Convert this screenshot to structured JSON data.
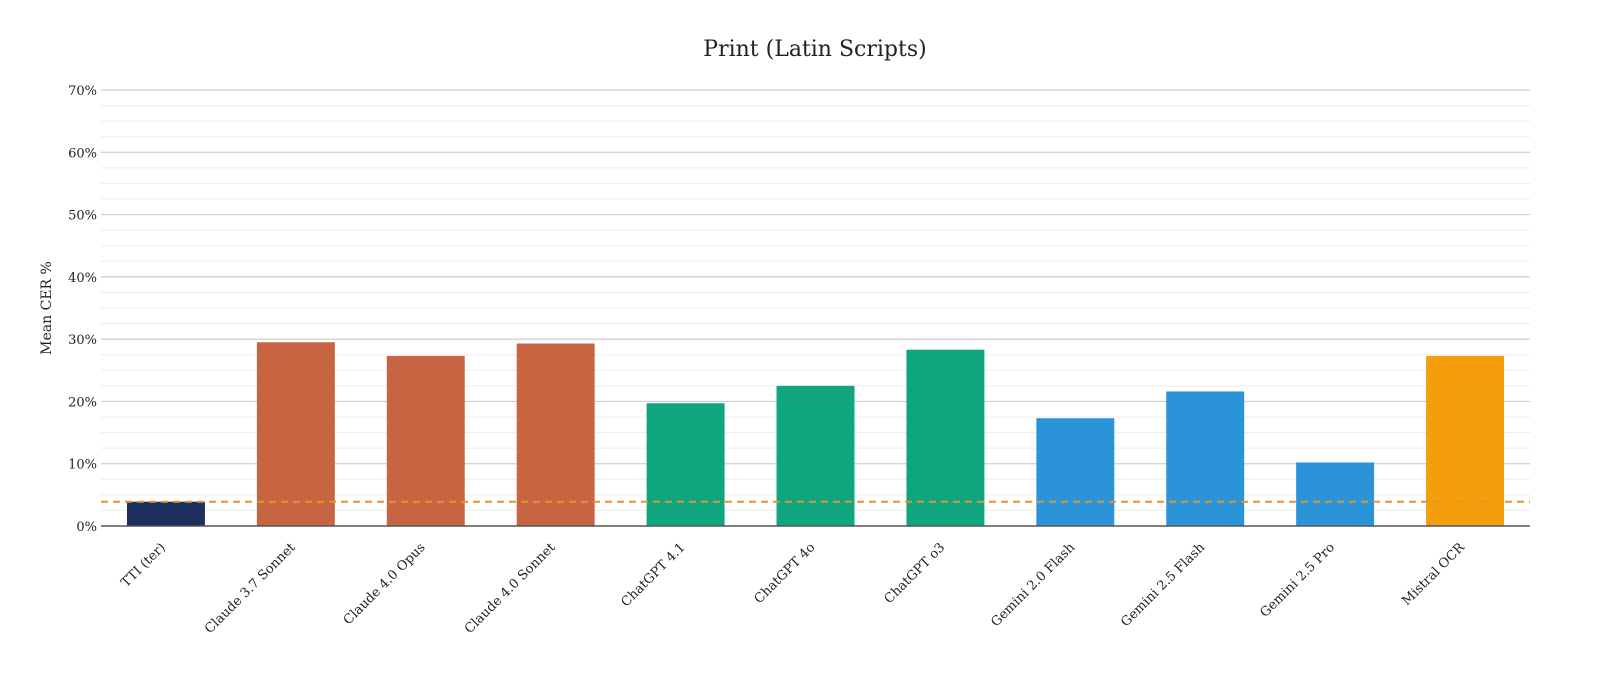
{
  "chart_data": {
    "type": "bar",
    "title": "Print (Latin Scripts)",
    "xlabel": "",
    "ylabel": "Mean CER %",
    "ylim": [
      0,
      70
    ],
    "yticks": [
      0,
      10,
      20,
      30,
      40,
      50,
      60,
      70
    ],
    "ytick_labels": [
      "0%",
      "10%",
      "20%",
      "30%",
      "40%",
      "50%",
      "60%",
      "70%"
    ],
    "grid": true,
    "categories": [
      "TTI (ter)",
      "Claude 3.7 Sonnet",
      "Claude 4.0 Opus",
      "Claude 4.0 Sonnet",
      "ChatGPT 4.1",
      "ChatGPT 4o",
      "ChatGPT o3",
      "Gemini 2.0 Flash",
      "Gemini 2.5 Flash",
      "Gemini 2.5 Pro",
      "Mistral OCR"
    ],
    "values": [
      3.9,
      29.5,
      27.3,
      29.3,
      19.7,
      22.5,
      28.3,
      17.3,
      21.6,
      10.2,
      27.3
    ],
    "colors": [
      "#1c2f5e",
      "#c76442",
      "#c76442",
      "#c76442",
      "#0ea57f",
      "#0ea57f",
      "#0ea57f",
      "#2b93d8",
      "#2b93d8",
      "#2b93d8",
      "#f59e0b"
    ],
    "reference_line": {
      "value": 3.9,
      "color": "#e0962a",
      "style": "dashed"
    }
  }
}
